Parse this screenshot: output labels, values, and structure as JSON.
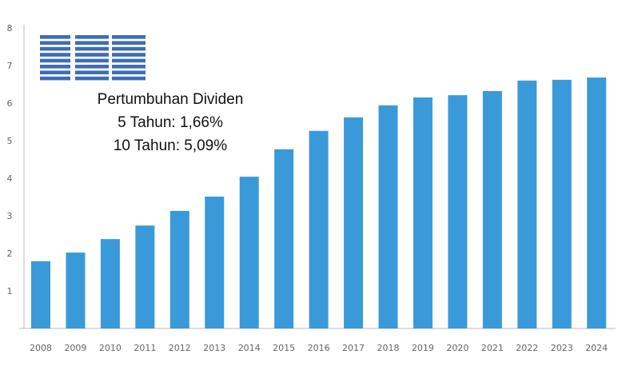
{
  "chart_data": {
    "type": "bar",
    "title": "",
    "xlabel": "",
    "ylabel": "",
    "categories": [
      "2008",
      "2009",
      "2010",
      "2011",
      "2012",
      "2013",
      "2014",
      "2015",
      "2016",
      "2017",
      "2018",
      "2019",
      "2020",
      "2021",
      "2022",
      "2023",
      "2024"
    ],
    "values": [
      1.79,
      2.02,
      2.38,
      2.74,
      3.13,
      3.51,
      4.04,
      4.77,
      5.26,
      5.62,
      5.94,
      6.15,
      6.21,
      6.32,
      6.6,
      6.62,
      6.68
    ],
    "ylim": [
      0,
      8
    ],
    "yticks": [
      "1",
      "2",
      "3",
      "4",
      "5",
      "6",
      "7",
      "8"
    ],
    "grid": false,
    "bar_color": "#3a9ad9",
    "logo_text": "IBM",
    "logo_color": "#3d6db5",
    "annotation": {
      "line1": "Pertumbuhan Dividen",
      "line2": "5 Tahun: 1,66%",
      "line3": "10 Tahun: 5,09%"
    }
  }
}
